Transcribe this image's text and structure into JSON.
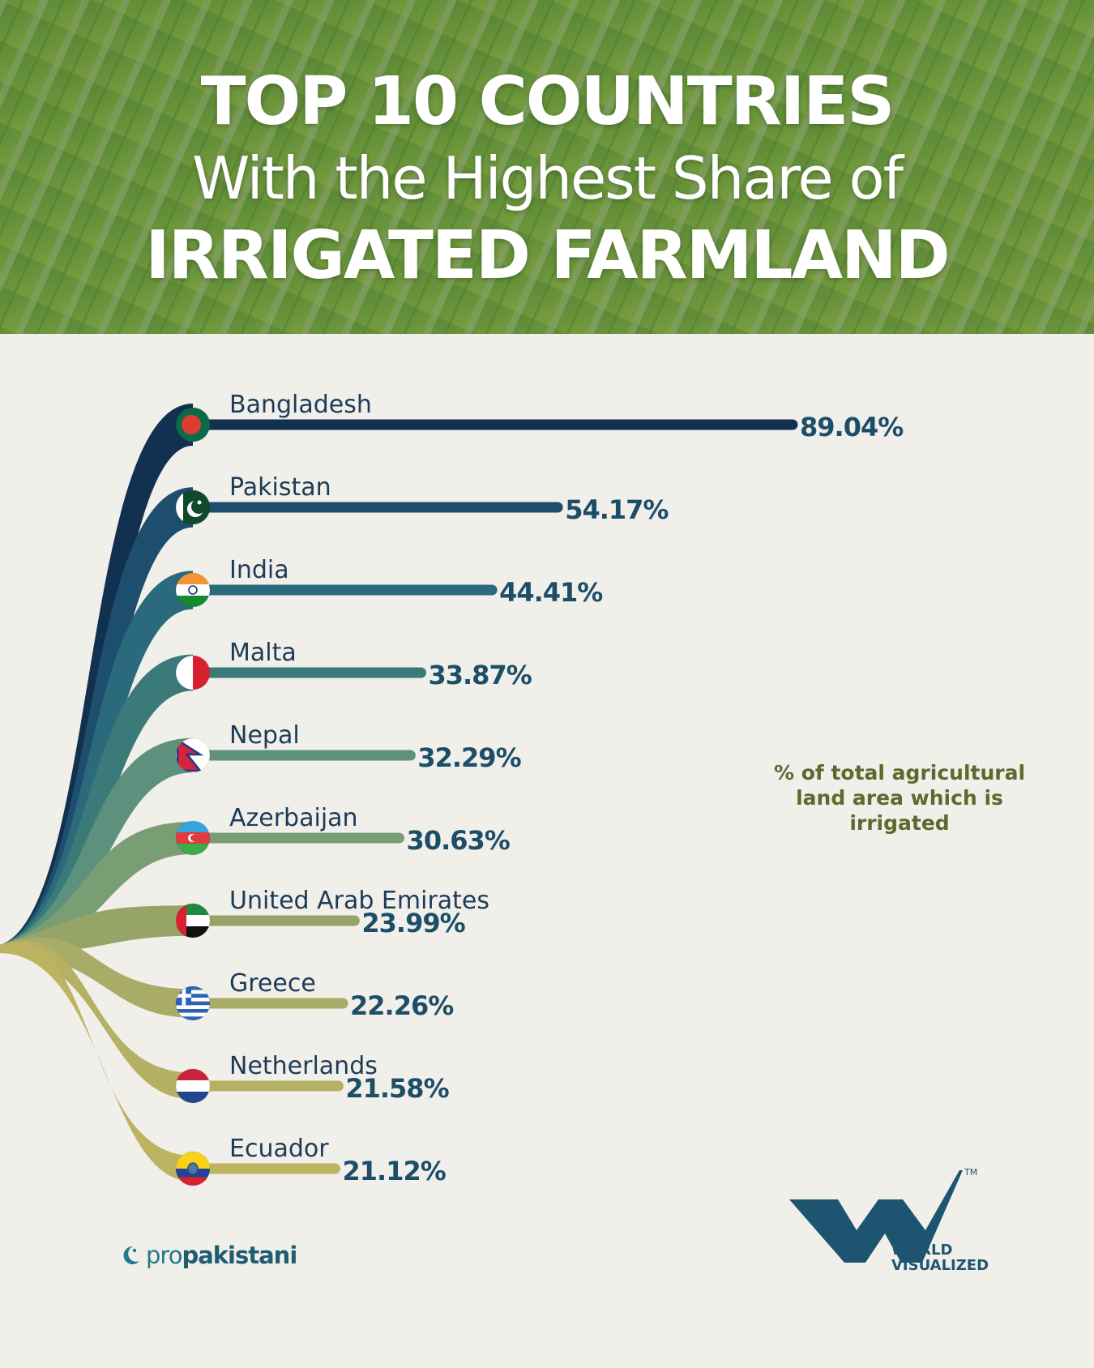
{
  "header": {
    "title_line1": "TOP 10 COUNTRIES",
    "title_line2": "With the Highest Share of",
    "title_line3": "IRRIGATED FARMLAND"
  },
  "chart_data": {
    "type": "bar",
    "orientation": "horizontal",
    "categories": [
      "Bangladesh",
      "Pakistan",
      "India",
      "Malta",
      "Nepal",
      "Azerbaijan",
      "United Arab Emirates",
      "Greece",
      "Netherlands",
      "Ecuador"
    ],
    "values": [
      89.04,
      54.17,
      44.41,
      33.87,
      32.29,
      30.63,
      23.99,
      22.26,
      21.58,
      21.12
    ],
    "value_labels": [
      "89.04%",
      "54.17%",
      "44.41%",
      "33.87%",
      "32.29%",
      "30.63%",
      "23.99%",
      "22.26%",
      "21.58%",
      "21.12%"
    ],
    "bar_colors": [
      "#12304f",
      "#1d4e6d",
      "#2a6a7c",
      "#3a7b7a",
      "#5e907e",
      "#7a9e74",
      "#97a468",
      "#a9ac67",
      "#b5b164",
      "#bdb462"
    ],
    "legend_note": "% of total agricultural land area which is irrigated"
  },
  "flags": [
    "bangladesh-flag-icon",
    "pakistan-flag-icon",
    "india-flag-icon",
    "malta-flag-icon",
    "nepal-flag-icon",
    "azerbaijan-flag-icon",
    "uae-flag-icon",
    "greece-flag-icon",
    "netherlands-flag-icon",
    "ecuador-flag-icon"
  ],
  "footer": {
    "source_brand_pro": "pro",
    "source_brand_rest": "pakistani",
    "logo_line1": "WORLD",
    "logo_line2": "VISUALIZED",
    "logo_tm": "TM"
  }
}
